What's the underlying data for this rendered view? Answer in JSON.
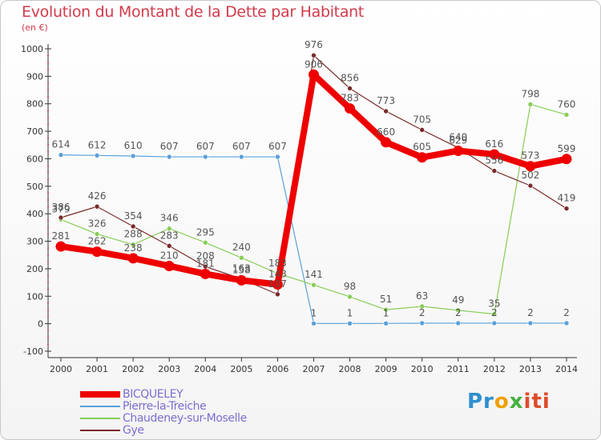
{
  "header": {
    "title": "Evolution du Montant de la Dette par Habitant",
    "unit": "(en €)"
  },
  "logo": {
    "part1": "Pr",
    "part2": "o",
    "part3": "x",
    "part4": "iti"
  },
  "chart_data": {
    "type": "line",
    "title": "Evolution du Montant de la Dette par Habitant",
    "ylabel": "(en €)",
    "xlabel": "",
    "ylim": [
      -100,
      1000
    ],
    "yticks": [
      -100,
      0,
      100,
      200,
      300,
      400,
      500,
      600,
      700,
      800,
      900,
      1000
    ],
    "grid": false,
    "legend_position": "bottom-left",
    "categories": [
      "2000",
      "2001",
      "2002",
      "2003",
      "2004",
      "2005",
      "2006",
      "2007",
      "2008",
      "2009",
      "2010",
      "2011",
      "2012",
      "2013",
      "2014"
    ],
    "series": [
      {
        "name": "BICQUELEY",
        "color": "#ee0000",
        "emphasis": true,
        "values": [
          281,
          262,
          238,
          210,
          181,
          158,
          143,
          906,
          783,
          660,
          605,
          629,
          616,
          573,
          599
        ],
        "labels": [
          "281",
          "262",
          "238",
          "210",
          "181",
          "158",
          "143",
          "906",
          "783",
          "660",
          "605",
          "629",
          "616",
          "573",
          "599"
        ]
      },
      {
        "name": "Pierre-la-Treiche",
        "color": "#5aa0d8",
        "values": [
          614,
          612,
          610,
          607,
          607,
          607,
          607,
          1,
          1,
          1,
          2,
          2,
          2,
          2,
          2
        ],
        "labels": [
          "614",
          "612",
          "610",
          "607",
          "607",
          "607",
          "607",
          "1",
          "1",
          "1",
          "2",
          "2",
          "2",
          "2",
          "2"
        ]
      },
      {
        "name": "Chaudeney-sur-Moselle",
        "color": "#88cc55",
        "values": [
          379,
          326,
          288,
          346,
          295,
          240,
          183,
          141,
          98,
          51,
          63,
          49,
          35,
          798,
          760
        ],
        "labels": [
          "379",
          "326",
          "288",
          "346",
          "295",
          "240",
          "183",
          "141",
          "98",
          "51",
          "63",
          "49",
          "35",
          "798",
          "760"
        ]
      },
      {
        "name": "Gye",
        "color": "#7a2a2a",
        "values": [
          386,
          426,
          354,
          283,
          208,
          163,
          107,
          976,
          856,
          773,
          705,
          640,
          556,
          502,
          419
        ],
        "labels": [
          "386",
          "426",
          "354",
          "283",
          "208",
          "163",
          "107",
          "976",
          "856",
          "773",
          "705",
          "640",
          "556",
          "502",
          "419"
        ]
      }
    ]
  }
}
